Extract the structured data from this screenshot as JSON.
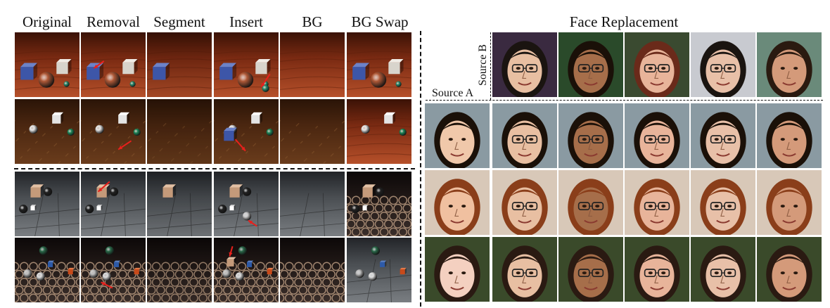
{
  "left_panel": {
    "columns": [
      "Original",
      "Removal",
      "Segment",
      "Insert",
      "BG",
      "BG Swap"
    ],
    "rows": [
      {
        "scene": "wood",
        "objects": "cubes-spheres"
      },
      {
        "scene": "dirt",
        "objects": "white-cube-spheres"
      },
      {
        "scene": "tile",
        "objects": "cylinder-spheres"
      },
      {
        "scene": "mesh",
        "objects": "colored-objects"
      }
    ]
  },
  "right_panel": {
    "title": "Face Replacement",
    "source_a_label": "Source A",
    "source_b_label": "Source B",
    "source_b_faces": [
      "face-b1",
      "face-b2",
      "face-b3",
      "face-b4",
      "face-b5"
    ],
    "source_a_faces": [
      "face-a1",
      "face-a2",
      "face-a3"
    ]
  },
  "colors": {
    "arrow": "#e8201c",
    "divider": "#111111"
  }
}
